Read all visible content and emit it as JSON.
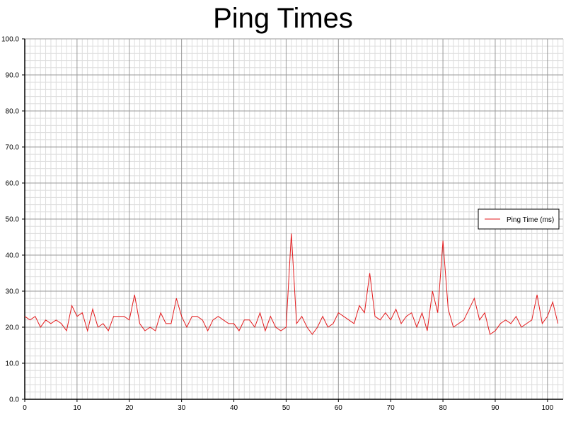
{
  "chart_data": {
    "type": "line",
    "title": "Ping Times",
    "xlabel": "",
    "ylabel": "",
    "xlim": [
      0,
      103
    ],
    "ylim": [
      0,
      100
    ],
    "x_ticks": [
      0,
      10,
      20,
      30,
      40,
      50,
      60,
      70,
      80,
      90,
      100
    ],
    "x_tick_labels": [
      "0",
      "10",
      "20",
      "30",
      "40",
      "50",
      "60",
      "70",
      "80",
      "90",
      "100"
    ],
    "y_ticks": [
      0,
      10,
      20,
      30,
      40,
      50,
      60,
      70,
      80,
      90,
      100
    ],
    "y_tick_labels": [
      "0.0",
      "10.0",
      "20.0",
      "30.0",
      "40.0",
      "50.0",
      "60.0",
      "70.0",
      "80.0",
      "90.0",
      "100.0"
    ],
    "grid": true,
    "legend_position": "right",
    "series": [
      {
        "name": "Ping Time (ms)",
        "color": "#e31a1c",
        "points": [
          [
            0,
            23
          ],
          [
            1,
            22
          ],
          [
            2,
            23
          ],
          [
            3,
            20
          ],
          [
            4,
            22
          ],
          [
            5,
            21
          ],
          [
            6,
            22
          ],
          [
            7,
            21
          ],
          [
            8,
            19
          ],
          [
            9,
            26
          ],
          [
            10,
            23
          ],
          [
            11,
            24
          ],
          [
            12,
            19
          ],
          [
            13,
            25
          ],
          [
            14,
            20
          ],
          [
            15,
            21
          ],
          [
            16,
            19
          ],
          [
            17,
            23
          ],
          [
            18,
            23
          ],
          [
            19,
            23
          ],
          [
            20,
            22
          ],
          [
            21,
            29
          ],
          [
            22,
            21
          ],
          [
            23,
            19
          ],
          [
            24,
            20
          ],
          [
            25,
            19
          ],
          [
            26,
            24
          ],
          [
            27,
            21
          ],
          [
            28,
            21
          ],
          [
            29,
            28
          ],
          [
            30,
            23
          ],
          [
            31,
            20
          ],
          [
            32,
            23
          ],
          [
            33,
            23
          ],
          [
            34,
            22
          ],
          [
            35,
            19
          ],
          [
            36,
            22
          ],
          [
            37,
            23
          ],
          [
            38,
            22
          ],
          [
            39,
            21
          ],
          [
            40,
            21
          ],
          [
            41,
            19
          ],
          [
            42,
            22
          ],
          [
            43,
            22
          ],
          [
            44,
            20
          ],
          [
            45,
            24
          ],
          [
            46,
            19
          ],
          [
            47,
            23
          ],
          [
            48,
            20
          ],
          [
            49,
            19
          ],
          [
            50,
            20
          ],
          [
            51,
            46
          ],
          [
            52,
            21
          ],
          [
            53,
            23
          ],
          [
            54,
            20
          ],
          [
            55,
            18
          ],
          [
            56,
            20
          ],
          [
            57,
            23
          ],
          [
            58,
            20
          ],
          [
            59,
            21
          ],
          [
            60,
            24
          ],
          [
            61,
            23
          ],
          [
            62,
            22
          ],
          [
            63,
            21
          ],
          [
            64,
            26
          ],
          [
            65,
            24
          ],
          [
            66,
            35
          ],
          [
            67,
            23
          ],
          [
            68,
            22
          ],
          [
            69,
            24
          ],
          [
            70,
            22
          ],
          [
            71,
            25
          ],
          [
            72,
            21
          ],
          [
            73,
            23
          ],
          [
            74,
            24
          ],
          [
            75,
            20
          ],
          [
            76,
            24
          ],
          [
            77,
            19
          ],
          [
            78,
            30
          ],
          [
            79,
            24
          ],
          [
            80,
            44
          ],
          [
            81,
            25
          ],
          [
            82,
            20
          ],
          [
            83,
            21
          ],
          [
            84,
            22
          ],
          [
            86,
            28
          ],
          [
            87,
            22
          ],
          [
            88,
            24
          ],
          [
            89,
            18
          ],
          [
            90,
            19
          ],
          [
            91,
            21
          ],
          [
            92,
            22
          ],
          [
            93,
            21
          ],
          [
            94,
            23
          ],
          [
            95,
            20
          ],
          [
            96,
            21
          ],
          [
            97,
            22
          ],
          [
            98,
            29
          ],
          [
            99,
            21
          ],
          [
            100,
            23
          ],
          [
            101,
            27
          ],
          [
            102,
            21
          ]
        ]
      }
    ]
  }
}
